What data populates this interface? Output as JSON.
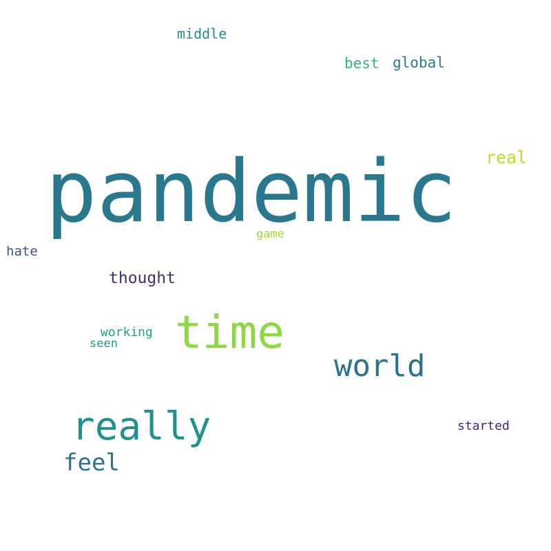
{
  "words": {
    "pandemic": {
      "text": "pandemic",
      "color": "#2a788e"
    },
    "time": {
      "text": "time",
      "color": "#8fd744"
    },
    "world": {
      "text": "world",
      "color": "#2c728e"
    },
    "really": {
      "text": "really",
      "color": "#21918c"
    },
    "feel": {
      "text": "feel",
      "color": "#2c718e"
    },
    "thought": {
      "text": "thought",
      "color": "#472d7b"
    },
    "real": {
      "text": "real",
      "color": "#b8de29"
    },
    "middle": {
      "text": "middle",
      "color": "#21908d"
    },
    "best": {
      "text": "best",
      "color": "#35b779"
    },
    "global": {
      "text": "global",
      "color": "#2a788e"
    },
    "hate": {
      "text": "hate",
      "color": "#3b528b"
    },
    "game": {
      "text": "game",
      "color": "#a0da39"
    },
    "working": {
      "text": "working",
      "color": "#1fa187"
    },
    "seen": {
      "text": "seen",
      "color": "#1f9a8a"
    },
    "started": {
      "text": "started",
      "color": "#482475"
    }
  }
}
